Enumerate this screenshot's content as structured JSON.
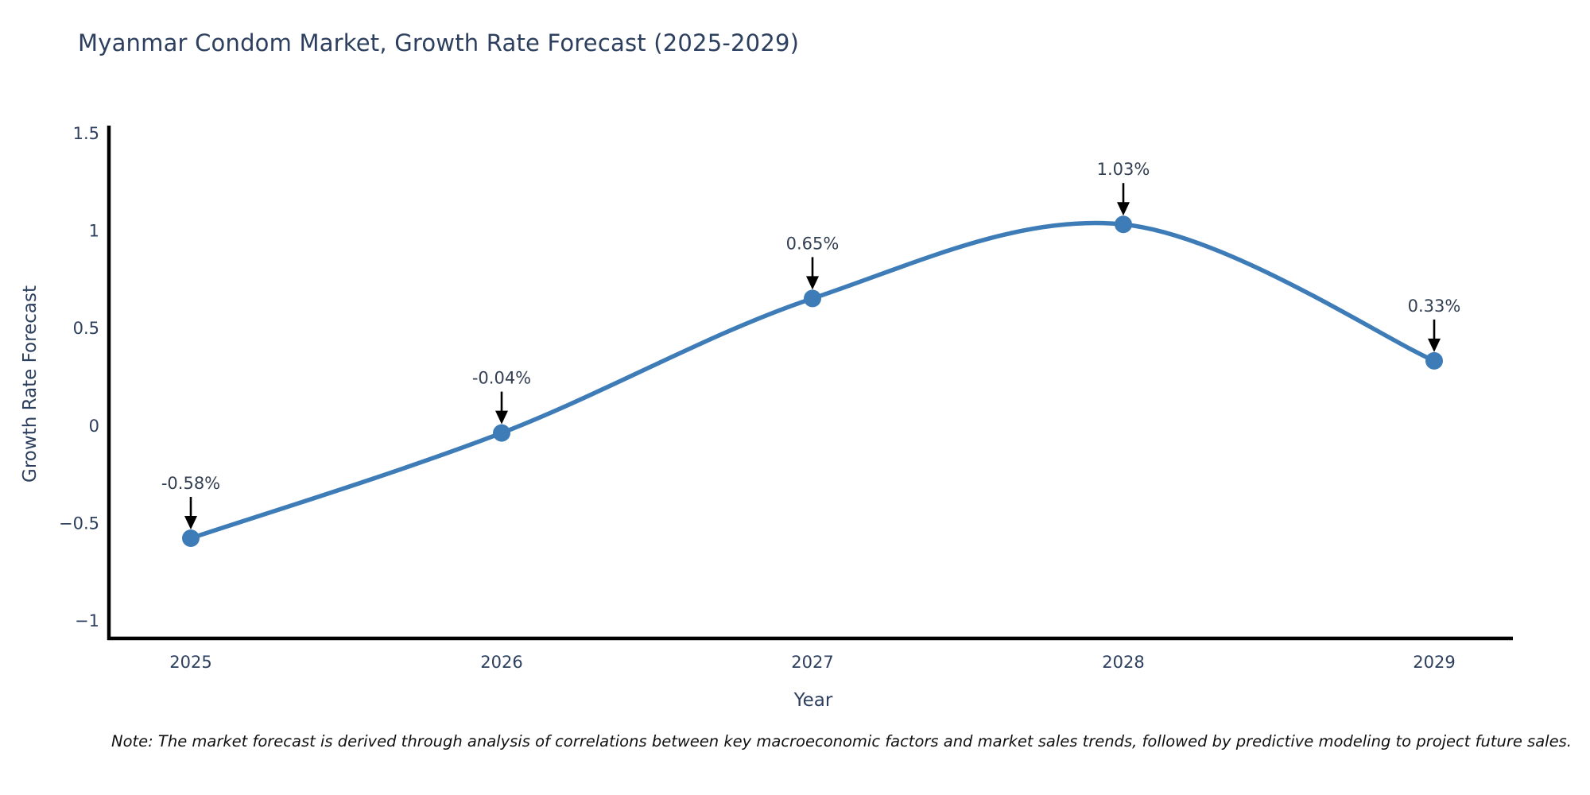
{
  "title": "Myanmar Condom Market, Growth Rate Forecast (2025-2029)",
  "note": "Note: The market forecast is derived through analysis of correlations between key macroeconomic factors and market sales trends, followed by predictive modeling to project future sales.",
  "chart_data": {
    "type": "line",
    "line_shape": "spline",
    "title": "Myanmar Condom Market, Growth Rate Forecast (2025-2029)",
    "xlabel": "Year",
    "ylabel": "Growth Rate Forecast",
    "x": [
      2025,
      2026,
      2027,
      2028,
      2029
    ],
    "series": [
      {
        "name": "Growth Rate Forecast",
        "values": [
          -0.58,
          -0.04,
          0.65,
          1.03,
          0.33
        ]
      }
    ],
    "point_labels": [
      "-0.58%",
      "-0.04%",
      "0.65%",
      "1.03%",
      "0.33%"
    ],
    "xtick_labels": [
      "2025",
      "2026",
      "2027",
      "2028",
      "2029"
    ],
    "ytick_values": [
      1.5,
      1,
      0.5,
      0,
      -0.5,
      -1
    ],
    "ytick_labels": [
      "1.5",
      "1",
      "0.5",
      "0",
      "−0.5",
      "−1"
    ],
    "ylim": [
      -1,
      1.5
    ],
    "grid": false,
    "legend_position": "none",
    "colors": {
      "line": "#3e7cb8",
      "marker": "#3e7cb8",
      "axis": "#000000",
      "tick_label": "#2d3f5e",
      "annotation_text": "#333f52",
      "arrow": "#000000",
      "title_text": "#2d3f5e",
      "note_text": "#111111"
    }
  }
}
